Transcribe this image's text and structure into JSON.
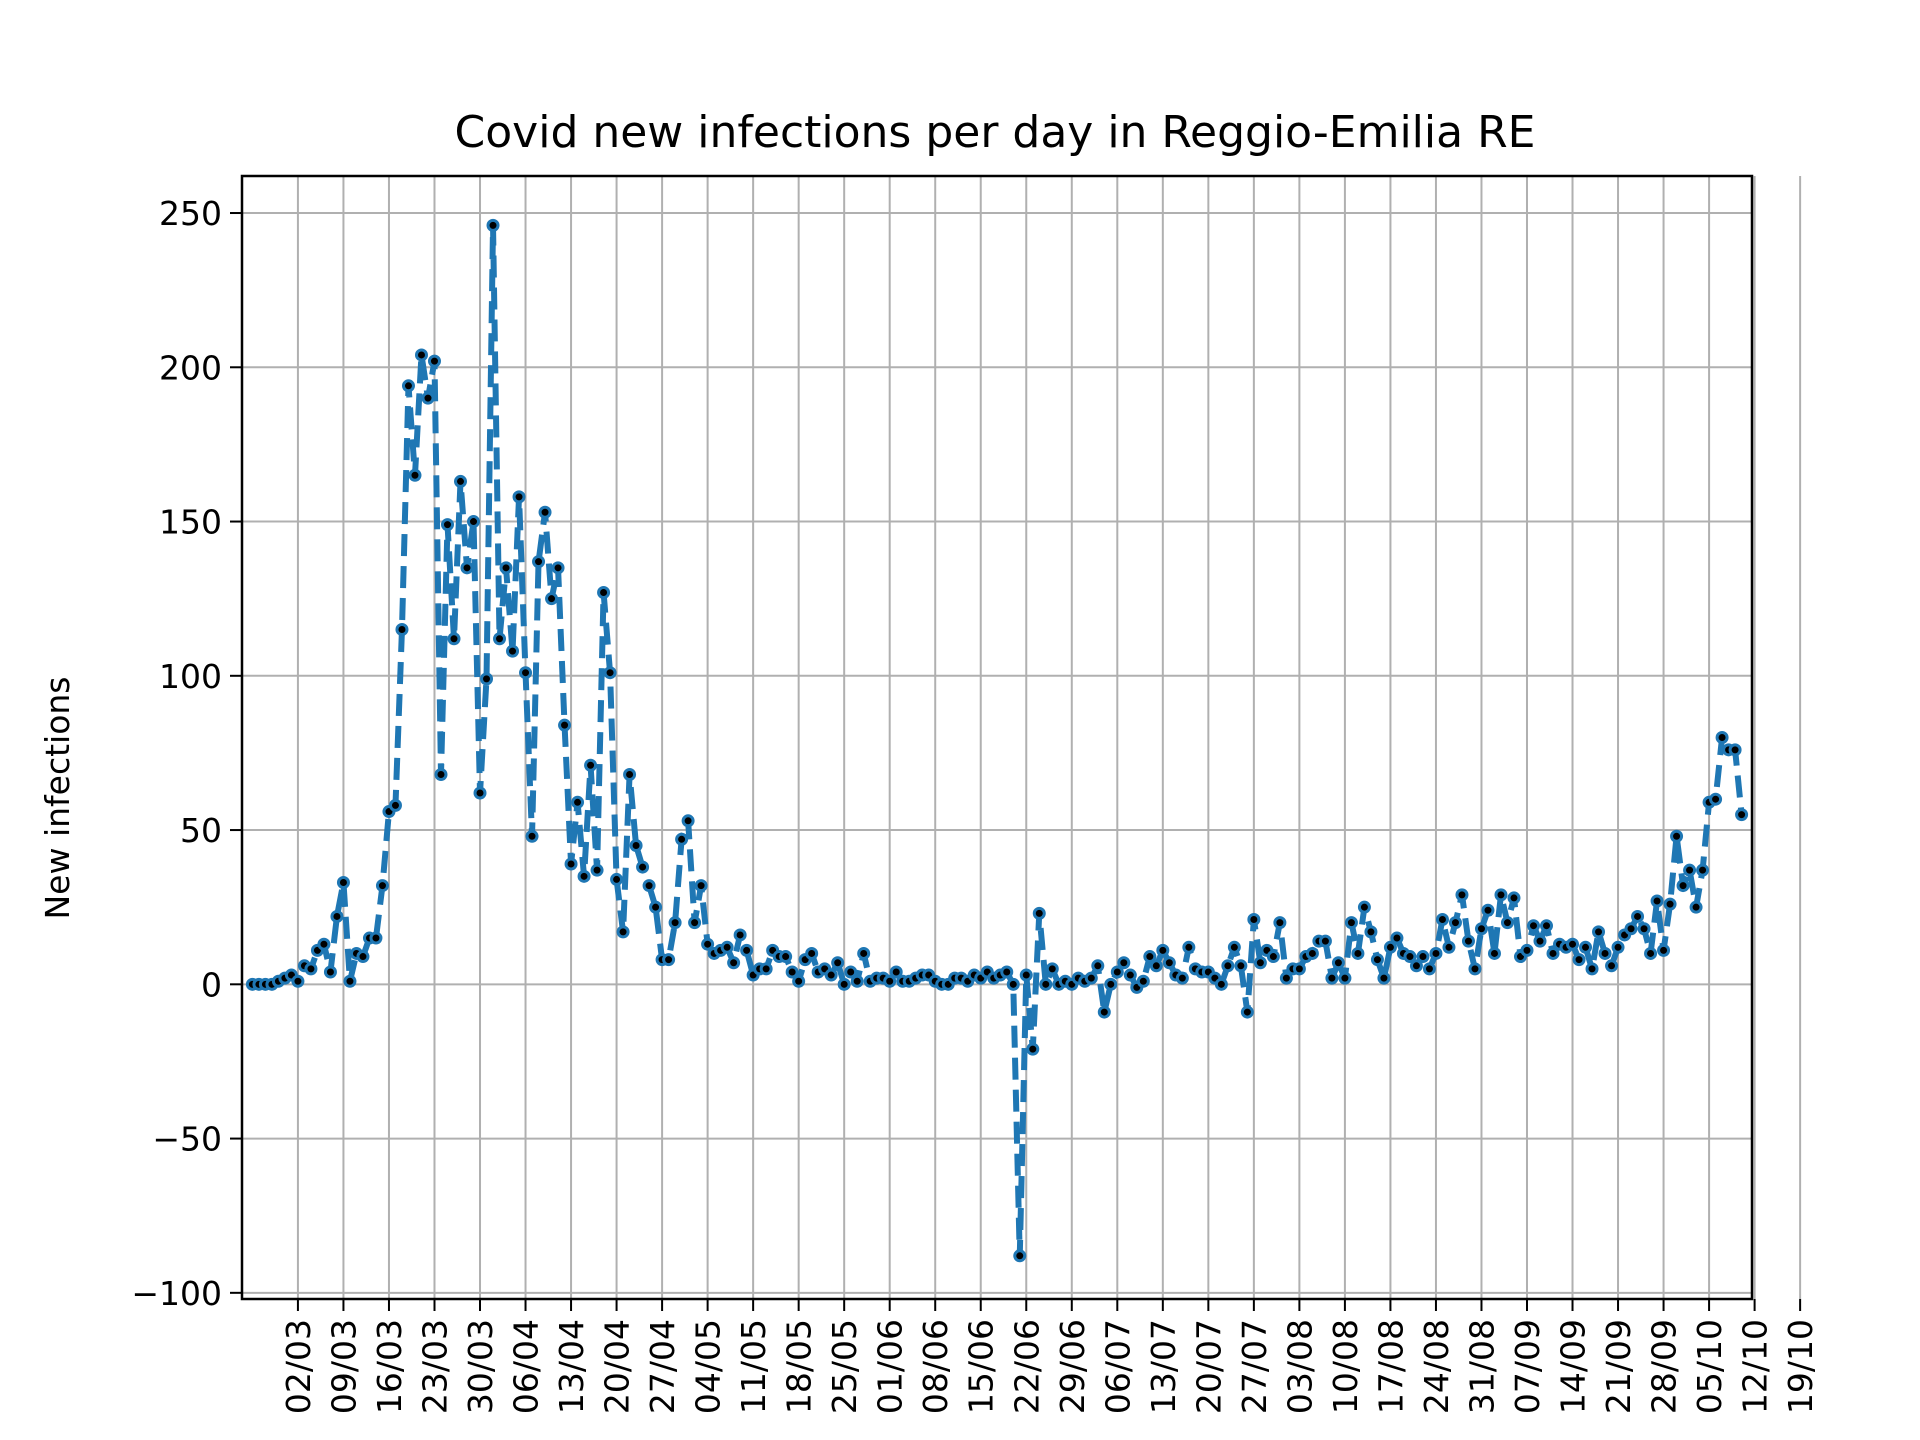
{
  "chart_data": {
    "type": "line",
    "title": "Covid new infections per day in Reggio-Emilia RE",
    "xlabel": "",
    "ylabel": "New infections",
    "ylim": [
      -102,
      262
    ],
    "yticks": [
      -100,
      -50,
      0,
      50,
      100,
      150,
      200,
      250
    ],
    "ytick_labels": [
      "−100",
      "−50",
      "0",
      "50",
      "100",
      "150",
      "200",
      "250"
    ],
    "grid": true,
    "x_start_date": "2020-02-24",
    "xticks": [
      "2020-03-02",
      "2020-03-09",
      "2020-03-16",
      "2020-03-23",
      "2020-03-30",
      "2020-04-06",
      "2020-04-13",
      "2020-04-20",
      "2020-04-27",
      "2020-05-04",
      "2020-05-11",
      "2020-05-18",
      "2020-05-25",
      "2020-06-01",
      "2020-06-08",
      "2020-06-15",
      "2020-06-22",
      "2020-06-29",
      "2020-07-06",
      "2020-07-13",
      "2020-07-20",
      "2020-07-27",
      "2020-08-03",
      "2020-08-10",
      "2020-08-17",
      "2020-08-24",
      "2020-08-31",
      "2020-09-07",
      "2020-09-14",
      "2020-09-21",
      "2020-09-28",
      "2020-10-05",
      "2020-10-12",
      "2020-10-19"
    ],
    "xtick_labels": [
      "02/03",
      "09/03",
      "16/03",
      "23/03",
      "30/03",
      "06/04",
      "13/04",
      "20/04",
      "27/04",
      "04/05",
      "11/05",
      "18/05",
      "25/05",
      "01/06",
      "08/06",
      "15/06",
      "22/06",
      "29/06",
      "06/07",
      "13/07",
      "20/07",
      "27/07",
      "03/08",
      "10/08",
      "17/08",
      "24/08",
      "31/08",
      "07/09",
      "14/09",
      "21/09",
      "28/09",
      "05/10",
      "12/10",
      "19/10"
    ],
    "series": [
      {
        "line_color": "#1f77b4",
        "marker_color": "#000000",
        "values": [
          0,
          0,
          0,
          0,
          1,
          2,
          3,
          1,
          6,
          5,
          11,
          13,
          4,
          22,
          33,
          1,
          10,
          9,
          15,
          15,
          32,
          56,
          58,
          115,
          194,
          165,
          204,
          190,
          202,
          68,
          149,
          112,
          163,
          135,
          150,
          62,
          99,
          246,
          112,
          135,
          108,
          158,
          101,
          48,
          137,
          153,
          125,
          135,
          84,
          39,
          59,
          35,
          71,
          37,
          127,
          101,
          34,
          17,
          68,
          45,
          38,
          32,
          25,
          8,
          8,
          20,
          47,
          53,
          20,
          32,
          13,
          10,
          11,
          12,
          7,
          16,
          11,
          3,
          5,
          5,
          11,
          9,
          9,
          4,
          1,
          8,
          10,
          4,
          5,
          3,
          7,
          0,
          4,
          1,
          10,
          1,
          2,
          2,
          1,
          4,
          1,
          1,
          2,
          3,
          3,
          1,
          0,
          0,
          2,
          2,
          1,
          3,
          2,
          4,
          2,
          3,
          4,
          0,
          -88,
          3,
          -21,
          23,
          0,
          5,
          0,
          1,
          0,
          2,
          1,
          2,
          6,
          -9,
          0,
          4,
          7,
          3,
          -1,
          1,
          9,
          6,
          11,
          7,
          3,
          2,
          12,
          5,
          4,
          4,
          2,
          0,
          6,
          12,
          6,
          -9,
          21,
          7,
          11,
          9,
          20,
          2,
          5,
          5,
          9,
          10,
          14,
          14,
          2,
          7,
          2,
          20,
          10,
          25,
          17,
          8,
          2,
          12,
          15,
          10,
          9,
          6,
          9,
          5,
          10,
          21,
          12,
          20,
          29,
          14,
          5,
          18,
          24,
          10,
          29,
          20,
          28,
          9,
          11,
          19,
          14,
          19,
          10,
          13,
          12,
          13,
          8,
          12,
          5,
          17,
          10,
          6,
          12,
          16,
          18,
          22,
          18,
          10,
          27,
          11,
          26,
          48,
          32,
          37,
          25,
          37,
          59,
          60,
          80,
          76,
          76,
          55
        ]
      }
    ]
  }
}
